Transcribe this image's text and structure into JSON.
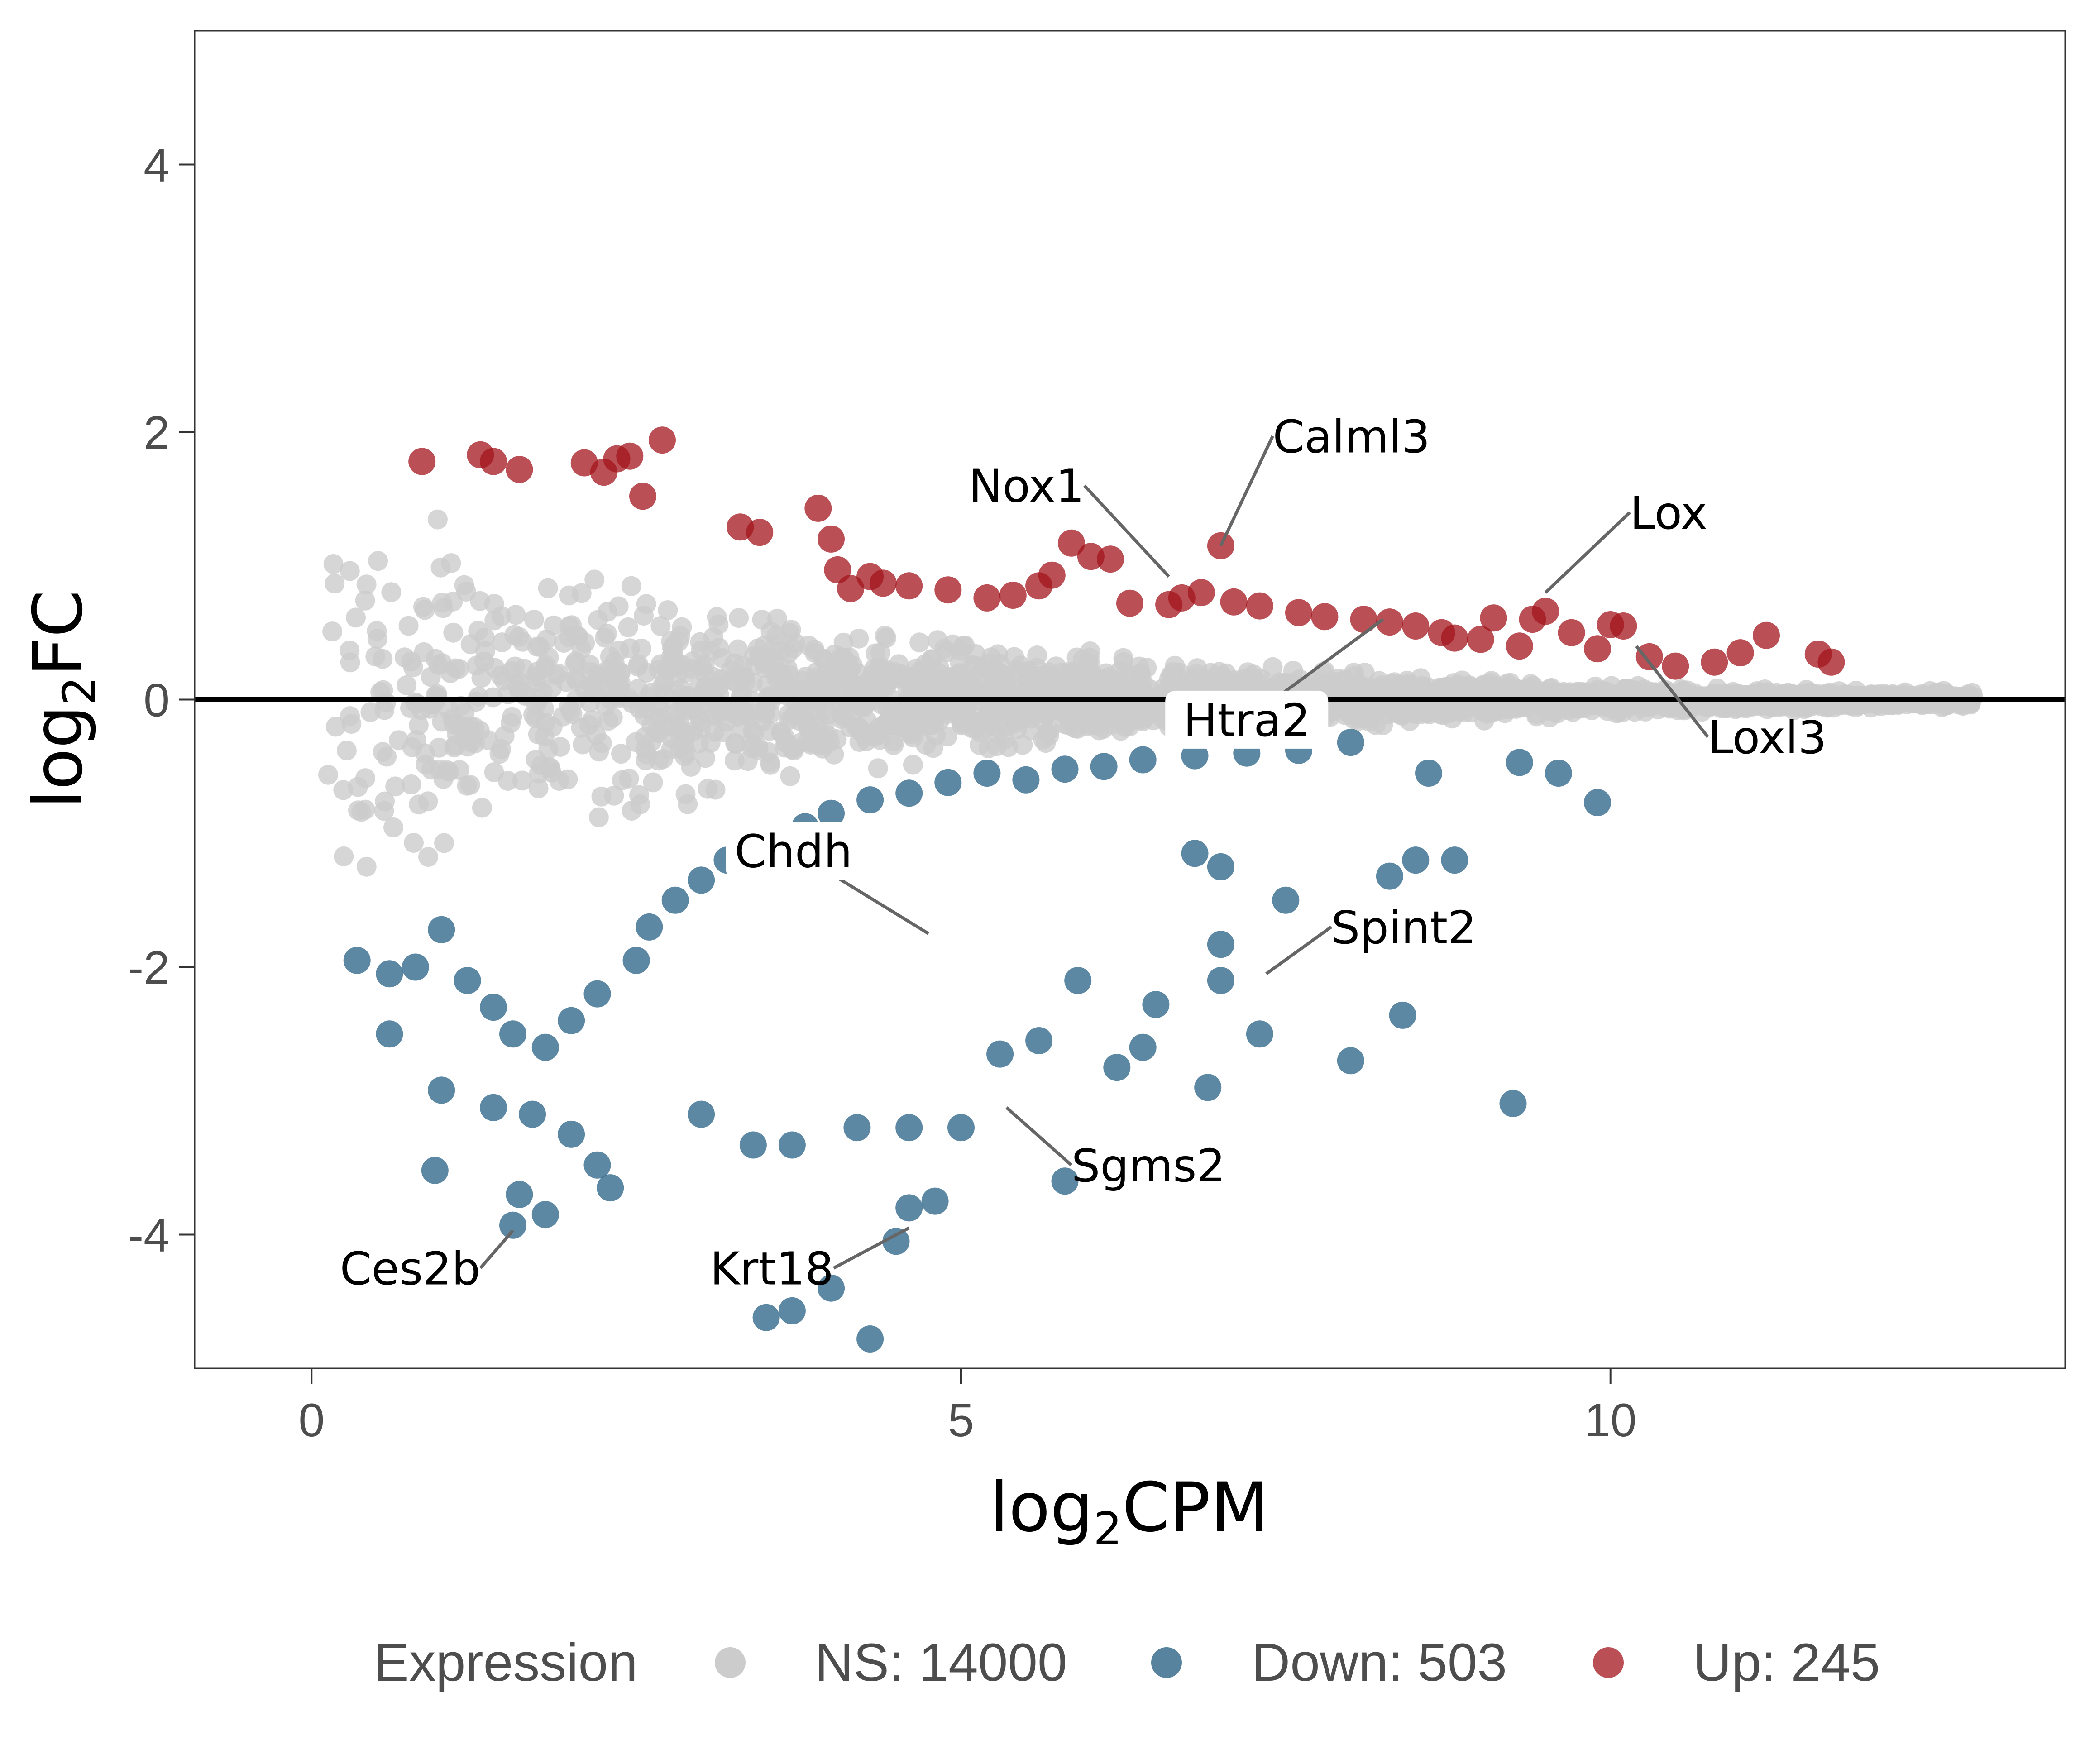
{
  "chart_data": {
    "type": "scatter",
    "title": "",
    "xlabel": "log2CPM",
    "ylabel": "log2FC",
    "xlim": [
      -0.9,
      13.5
    ],
    "ylim": [
      -5.0,
      5.0
    ],
    "x_ticks": [
      0,
      5,
      10
    ],
    "y_ticks": [
      -4,
      -2,
      0,
      2,
      4
    ],
    "x_tick_labels": [
      "0",
      "5",
      "10"
    ],
    "y_tick_labels": [
      "-4",
      "-2",
      "0",
      "2",
      "4"
    ],
    "grid": false,
    "reference_line_y": 0,
    "legend": {
      "title": "Expression",
      "position": "bottom",
      "entries": [
        {
          "label": "NS: 14000",
          "key": "ns"
        },
        {
          "label": "Down: 503",
          "key": "down"
        },
        {
          "label": "Up: 245",
          "key": "up"
        }
      ]
    },
    "colors": {
      "ns": "#cccccc",
      "down": "#1f5a7f",
      "up": "#a3161c"
    },
    "up_points": [
      [
        0.85,
        1.78
      ],
      [
        1.3,
        1.83
      ],
      [
        1.4,
        1.78
      ],
      [
        1.6,
        1.72
      ],
      [
        2.1,
        1.77
      ],
      [
        2.25,
        1.7
      ],
      [
        2.35,
        1.8
      ],
      [
        2.45,
        1.82
      ],
      [
        2.55,
        1.52
      ],
      [
        2.7,
        1.94
      ],
      [
        3.3,
        1.29
      ],
      [
        3.45,
        1.25
      ],
      [
        3.9,
        1.43
      ],
      [
        4.0,
        1.2
      ],
      [
        4.05,
        0.97
      ],
      [
        4.15,
        0.83
      ],
      [
        4.3,
        0.92
      ],
      [
        4.4,
        0.87
      ],
      [
        4.6,
        0.85
      ],
      [
        4.9,
        0.82
      ],
      [
        5.2,
        0.76
      ],
      [
        5.4,
        0.78
      ],
      [
        5.6,
        0.85
      ],
      [
        5.7,
        0.93
      ],
      [
        5.85,
        1.17
      ],
      [
        6.0,
        1.07
      ],
      [
        6.15,
        1.05
      ],
      [
        6.3,
        0.72
      ],
      [
        6.6,
        0.71
      ],
      [
        6.7,
        0.76
      ],
      [
        6.85,
        0.8
      ],
      [
        7.0,
        1.15
      ],
      [
        7.1,
        0.73
      ],
      [
        7.3,
        0.7
      ],
      [
        7.6,
        0.65
      ],
      [
        7.8,
        0.62
      ],
      [
        8.1,
        0.6
      ],
      [
        8.3,
        0.58
      ],
      [
        8.5,
        0.55
      ],
      [
        8.7,
        0.5
      ],
      [
        8.8,
        0.46
      ],
      [
        9.0,
        0.45
      ],
      [
        9.1,
        0.61
      ],
      [
        9.3,
        0.4
      ],
      [
        9.4,
        0.6
      ],
      [
        9.5,
        0.66
      ],
      [
        9.7,
        0.5
      ],
      [
        9.9,
        0.38
      ],
      [
        10.0,
        0.56
      ],
      [
        10.1,
        0.55
      ],
      [
        10.3,
        0.32
      ],
      [
        10.5,
        0.25
      ],
      [
        10.8,
        0.28
      ],
      [
        11.0,
        0.35
      ],
      [
        11.2,
        0.48
      ],
      [
        11.6,
        0.34
      ],
      [
        11.7,
        0.28
      ]
    ],
    "down_points": [
      [
        0.35,
        -1.95
      ],
      [
        0.6,
        -2.05
      ],
      [
        0.8,
        -2.0
      ],
      [
        1.0,
        -1.72
      ],
      [
        1.2,
        -2.1
      ],
      [
        1.4,
        -2.3
      ],
      [
        1.55,
        -2.5
      ],
      [
        1.8,
        -2.6
      ],
      [
        2.0,
        -2.4
      ],
      [
        2.2,
        -2.2
      ],
      [
        2.5,
        -1.95
      ],
      [
        2.6,
        -1.7
      ],
      [
        2.8,
        -1.5
      ],
      [
        3.0,
        -1.35
      ],
      [
        3.2,
        -1.2
      ],
      [
        3.4,
        -1.1
      ],
      [
        3.6,
        -1.05
      ],
      [
        3.8,
        -0.95
      ],
      [
        4.0,
        -0.85
      ],
      [
        4.3,
        -0.75
      ],
      [
        4.6,
        -0.7
      ],
      [
        4.9,
        -0.62
      ],
      [
        5.2,
        -0.55
      ],
      [
        5.5,
        -0.6
      ],
      [
        5.8,
        -0.52
      ],
      [
        6.1,
        -0.5
      ],
      [
        6.4,
        -0.45
      ],
      [
        6.8,
        -0.42
      ],
      [
        7.2,
        -0.4
      ],
      [
        7.6,
        -0.38
      ],
      [
        8.0,
        -0.32
      ],
      [
        8.6,
        -0.55
      ],
      [
        9.3,
        -0.47
      ],
      [
        9.6,
        -0.55
      ],
      [
        9.9,
        -0.77
      ],
      [
        0.6,
        -2.5
      ],
      [
        1.0,
        -2.92
      ],
      [
        1.4,
        -3.05
      ],
      [
        1.7,
        -3.1
      ],
      [
        2.0,
        -3.25
      ],
      [
        2.2,
        -3.48
      ],
      [
        2.3,
        -3.65
      ],
      [
        3.0,
        -3.1
      ],
      [
        3.4,
        -3.33
      ],
      [
        3.7,
        -3.33
      ],
      [
        4.2,
        -3.2
      ],
      [
        0.95,
        -3.52
      ],
      [
        1.6,
        -3.7
      ],
      [
        1.8,
        -3.85
      ],
      [
        1.55,
        -3.93
      ],
      [
        4.6,
        -3.2
      ],
      [
        5.0,
        -3.2
      ],
      [
        5.6,
        -2.55
      ],
      [
        5.3,
        -2.65
      ],
      [
        5.9,
        -2.1
      ],
      [
        6.2,
        -2.75
      ],
      [
        6.4,
        -2.6
      ],
      [
        6.5,
        -2.28
      ],
      [
        6.9,
        -2.9
      ],
      [
        7.0,
        -2.1
      ],
      [
        7.3,
        -2.5
      ],
      [
        8.0,
        -2.7
      ],
      [
        8.4,
        -2.36
      ],
      [
        9.25,
        -3.02
      ],
      [
        4.6,
        -3.8
      ],
      [
        4.8,
        -3.75
      ],
      [
        4.5,
        -4.05
      ],
      [
        4.0,
        -4.4
      ],
      [
        3.5,
        -4.62
      ],
      [
        3.7,
        -4.57
      ],
      [
        4.3,
        -4.78
      ],
      [
        5.8,
        -3.6
      ],
      [
        7.0,
        -1.83
      ],
      [
        7.5,
        -1.5
      ],
      [
        8.3,
        -1.32
      ],
      [
        8.5,
        -1.2
      ],
      [
        8.8,
        -1.2
      ],
      [
        7.0,
        -1.25
      ],
      [
        6.8,
        -1.15
      ]
    ],
    "ns_scatter": {
      "x_range": [
        0.1,
        12.8
      ],
      "max_y_spread": 2.08,
      "count": 14000
    },
    "annotations": [
      {
        "gene": "Calml3",
        "x": 7.0,
        "y": 1.15,
        "label_x": 7.4,
        "label_y": 1.97,
        "boxed": false,
        "anchor": "start"
      },
      {
        "gene": "Nox1",
        "x": 6.6,
        "y": 0.92,
        "label_x": 5.95,
        "label_y": 1.6,
        "boxed": false,
        "anchor": "end"
      },
      {
        "gene": "Lox",
        "x": 9.5,
        "y": 0.8,
        "label_x": 10.15,
        "label_y": 1.4,
        "boxed": false,
        "anchor": "start"
      },
      {
        "gene": "Htra2",
        "x": 8.25,
        "y": 0.6,
        "label_x": 7.2,
        "label_y": -0.15,
        "boxed": true,
        "anchor": "middle"
      },
      {
        "gene": "Loxl3",
        "x": 10.2,
        "y": 0.4,
        "label_x": 10.75,
        "label_y": -0.28,
        "boxed": false,
        "anchor": "start"
      },
      {
        "gene": "Chdh",
        "x": 4.75,
        "y": -1.75,
        "label_x": 3.71,
        "label_y": -1.13,
        "boxed": true,
        "anchor": "middle"
      },
      {
        "gene": "Spint2",
        "x": 7.35,
        "y": -2.05,
        "label_x": 7.85,
        "label_y": -1.7,
        "boxed": false,
        "anchor": "start"
      },
      {
        "gene": "Sgms2",
        "x": 5.35,
        "y": -3.05,
        "label_x": 5.85,
        "label_y": -3.48,
        "boxed": false,
        "anchor": "start"
      },
      {
        "gene": "Ces2b",
        "x": 1.55,
        "y": -3.97,
        "label_x": 1.3,
        "label_y": -4.25,
        "boxed": false,
        "anchor": "end"
      },
      {
        "gene": "Krt18",
        "x": 4.6,
        "y": -3.95,
        "label_x": 4.02,
        "label_y": -4.25,
        "boxed": false,
        "anchor": "end"
      }
    ]
  }
}
